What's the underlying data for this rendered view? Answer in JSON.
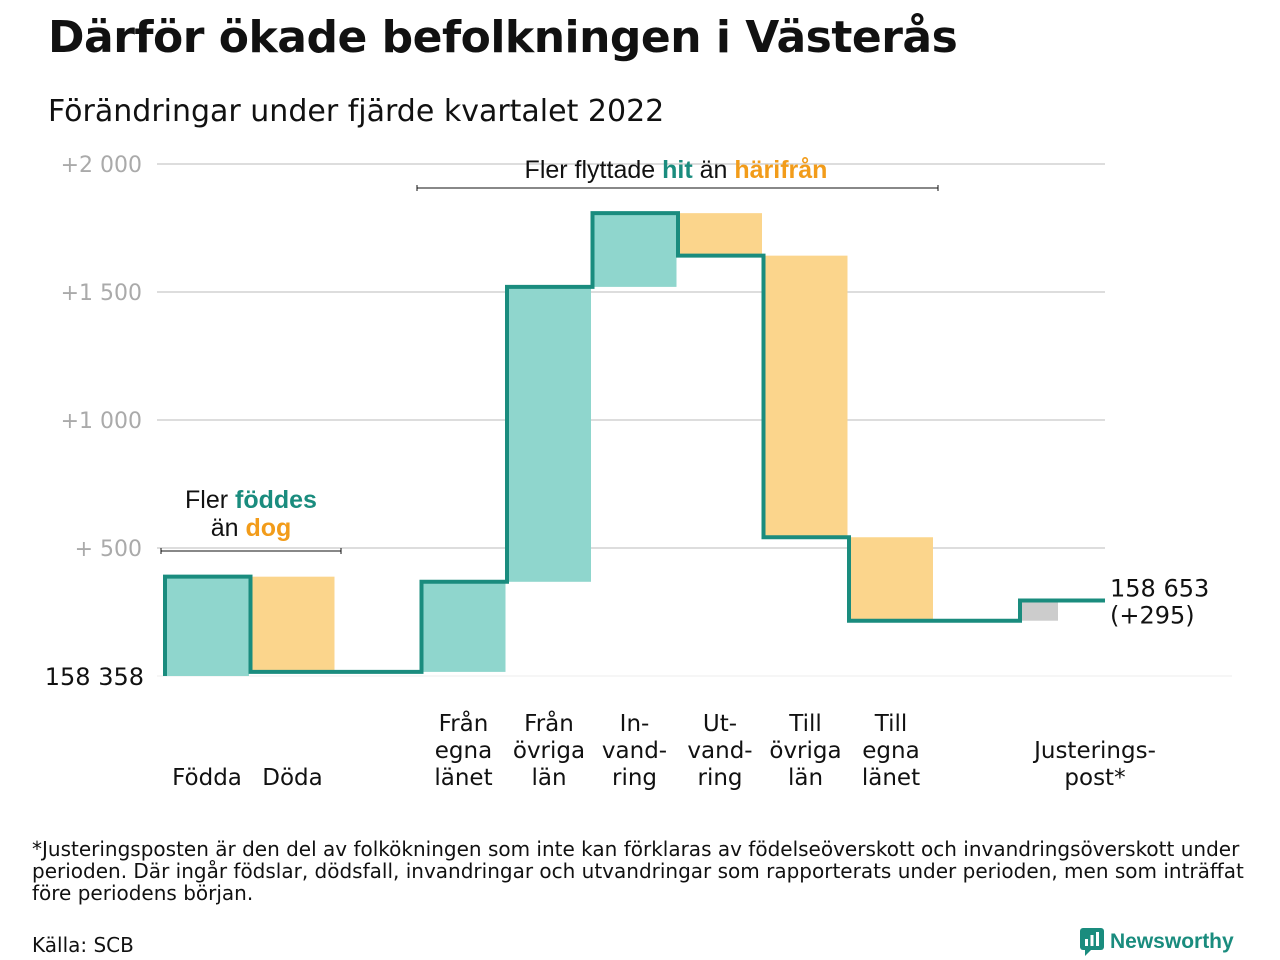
{
  "title": "Därför ökade befolkningen i Västerås",
  "subtitle": "Förändringar under fjärde kvartalet 2022",
  "footnote": "*Justeringsposten är den del av folkökningen som inte kan förklaras av födelseöverskott och invandringsöverskott under perioden. Där ingår födslar, dödsfall, invandringar och utvandringar som rapporterats under perioden, men som inträffat före periodens början.",
  "source": "Källa: SCB",
  "logo_text": "Newsworthy",
  "colors": {
    "increase": "#8fd6cd",
    "decrease": "#fbd58c",
    "adjustment": "#cccccc",
    "line": "#1a8c7e",
    "grid": "#dddddd",
    "axis_text": "#aaaaaa",
    "accent_teal": "#1a8c7e",
    "accent_orange": "#f29c1a"
  },
  "chart_data": {
    "type": "waterfall",
    "baseline_population": 158358,
    "baseline_label": "158 358",
    "end_label_value": "158 653",
    "end_label_change": "(+295)",
    "y_ticks": [
      {
        "value": 500,
        "label": "+ 500"
      },
      {
        "value": 1000,
        "label": "+1 000"
      },
      {
        "value": 1500,
        "label": "+1 500"
      },
      {
        "value": 2000,
        "label": "+2 000"
      }
    ],
    "ylim": [
      0,
      2000
    ],
    "categories": [
      {
        "lines": [
          "Födda"
        ],
        "value": 388
      },
      {
        "lines": [
          "Döda"
        ],
        "value": -372
      },
      {
        "lines": [],
        "value": 0
      },
      {
        "lines": [
          "Från",
          "egna",
          "länet"
        ],
        "value": 352
      },
      {
        "lines": [
          "Från",
          "övriga",
          "län"
        ],
        "value": 1152
      },
      {
        "lines": [
          "In-",
          "vand-",
          "ring"
        ],
        "value": 288
      },
      {
        "lines": [
          "Ut-",
          "vand-",
          "ring"
        ],
        "value": -166
      },
      {
        "lines": [
          "Till",
          "övriga",
          "län"
        ],
        "value": -1100
      },
      {
        "lines": [
          "Till",
          "egna",
          "länet"
        ],
        "value": -326
      },
      {
        "lines": [],
        "value": 0
      },
      {
        "lines": [
          "Justerings-",
          "post*"
        ],
        "value": 79
      }
    ],
    "annotations": {
      "births": {
        "pre": "Fler ",
        "hit": "föddes",
        "line2_pre": "än ",
        "away": "dog"
      },
      "moves": {
        "pre": "Fler flyttade ",
        "hit": "hit",
        "mid": " än ",
        "away": "härifrån"
      }
    }
  }
}
